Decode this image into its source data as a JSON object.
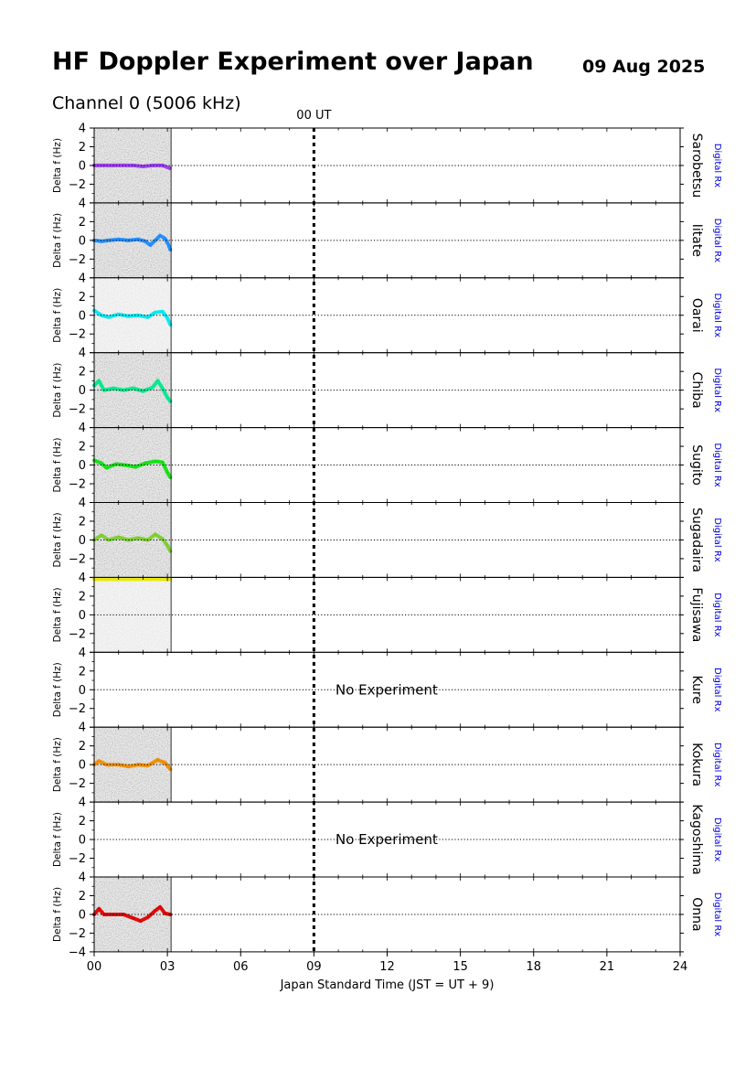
{
  "header": {
    "title": "HF Doppler Experiment over Japan",
    "date": "09 Aug 2025",
    "channel": "Channel 0 (5006 kHz)"
  },
  "chart_data": {
    "type": "line",
    "title": "HF Doppler Experiment over Japan",
    "subtitle": "Channel 0 (5006 kHz)",
    "xlabel": "Japan Standard Time (JST = UT + 9)",
    "ylabel": "Delta f (Hz)",
    "xlim": [
      0,
      24
    ],
    "ylim": [
      -4,
      4
    ],
    "x_ticks": [
      "00",
      "03",
      "06",
      "09",
      "12",
      "15",
      "18",
      "21",
      "24"
    ],
    "y_ticks": [
      "4",
      "2",
      "0",
      "−2",
      "−4"
    ],
    "ut_marker": {
      "x": 9,
      "label": "00 UT"
    },
    "receiver_label": "Digital Rx",
    "no_experiment_text": "No Experiment",
    "data_end_hour": 3.15,
    "panels": [
      {
        "station": "Sarobetsu",
        "color": "#9a3cf0",
        "active": true,
        "background": "dark",
        "series": [
          [
            0.0,
            0.0
          ],
          [
            0.4,
            0.0
          ],
          [
            0.8,
            0.0
          ],
          [
            1.2,
            0.0
          ],
          [
            1.6,
            0.0
          ],
          [
            2.0,
            -0.1
          ],
          [
            2.4,
            0.0
          ],
          [
            2.8,
            0.0
          ],
          [
            3.1,
            -0.3
          ]
        ]
      },
      {
        "station": "Iitate",
        "color": "#1e8cff",
        "active": true,
        "background": "dark",
        "series": [
          [
            0.0,
            0.0
          ],
          [
            0.3,
            -0.1
          ],
          [
            0.6,
            0.0
          ],
          [
            1.0,
            0.1
          ],
          [
            1.4,
            0.0
          ],
          [
            1.8,
            0.1
          ],
          [
            2.1,
            -0.1
          ],
          [
            2.3,
            -0.5
          ],
          [
            2.5,
            0.0
          ],
          [
            2.7,
            0.5
          ],
          [
            2.9,
            0.2
          ],
          [
            3.05,
            -0.5
          ],
          [
            3.12,
            -1.0
          ]
        ]
      },
      {
        "station": "Oarai",
        "color": "#00e8f0",
        "active": true,
        "background": "light",
        "series": [
          [
            0.0,
            0.5
          ],
          [
            0.3,
            0.0
          ],
          [
            0.6,
            -0.2
          ],
          [
            1.0,
            0.1
          ],
          [
            1.4,
            -0.1
          ],
          [
            1.8,
            0.0
          ],
          [
            2.2,
            -0.2
          ],
          [
            2.5,
            0.3
          ],
          [
            2.8,
            0.4
          ],
          [
            3.0,
            -0.3
          ],
          [
            3.12,
            -1.0
          ]
        ]
      },
      {
        "station": "Chiba",
        "color": "#00e88c",
        "active": true,
        "background": "dark",
        "series": [
          [
            0.0,
            0.5
          ],
          [
            0.2,
            1.0
          ],
          [
            0.4,
            0.0
          ],
          [
            0.8,
            0.2
          ],
          [
            1.2,
            0.0
          ],
          [
            1.6,
            0.2
          ],
          [
            2.0,
            -0.1
          ],
          [
            2.4,
            0.3
          ],
          [
            2.6,
            1.0
          ],
          [
            2.8,
            0.2
          ],
          [
            3.0,
            -0.8
          ],
          [
            3.12,
            -1.2
          ]
        ]
      },
      {
        "station": "Sugito",
        "color": "#10e010",
        "active": true,
        "background": "dark",
        "series": [
          [
            0.0,
            0.5
          ],
          [
            0.3,
            0.2
          ],
          [
            0.5,
            -0.3
          ],
          [
            0.9,
            0.1
          ],
          [
            1.3,
            0.0
          ],
          [
            1.7,
            -0.2
          ],
          [
            2.1,
            0.2
          ],
          [
            2.5,
            0.4
          ],
          [
            2.8,
            0.3
          ],
          [
            3.0,
            -0.8
          ],
          [
            3.12,
            -1.3
          ]
        ]
      },
      {
        "station": "Sugadaira",
        "color": "#7ccc30",
        "active": true,
        "background": "dark",
        "series": [
          [
            0.0,
            0.0
          ],
          [
            0.3,
            0.5
          ],
          [
            0.6,
            0.0
          ],
          [
            1.0,
            0.3
          ],
          [
            1.4,
            0.0
          ],
          [
            1.8,
            0.2
          ],
          [
            2.2,
            0.0
          ],
          [
            2.5,
            0.6
          ],
          [
            2.8,
            0.1
          ],
          [
            3.0,
            -0.6
          ],
          [
            3.12,
            -1.2
          ]
        ]
      },
      {
        "station": "Fujisawa",
        "color": "#e8e800",
        "active": true,
        "background": "light",
        "series": [
          [
            0.0,
            3.8
          ],
          [
            0.5,
            3.8
          ],
          [
            1.0,
            3.8
          ],
          [
            1.5,
            3.8
          ],
          [
            2.0,
            3.8
          ],
          [
            2.5,
            3.8
          ],
          [
            3.12,
            3.8
          ]
        ]
      },
      {
        "station": "Kure",
        "color": "#000000",
        "active": false,
        "background": "none",
        "series": []
      },
      {
        "station": "Kokura",
        "color": "#f08c00",
        "active": true,
        "background": "dark",
        "series": [
          [
            0.0,
            0.0
          ],
          [
            0.2,
            0.4
          ],
          [
            0.5,
            0.0
          ],
          [
            1.0,
            0.0
          ],
          [
            1.4,
            -0.2
          ],
          [
            1.8,
            0.0
          ],
          [
            2.2,
            -0.1
          ],
          [
            2.6,
            0.5
          ],
          [
            2.9,
            0.2
          ],
          [
            3.12,
            -0.5
          ]
        ]
      },
      {
        "station": "Kagoshima",
        "color": "#000000",
        "active": false,
        "background": "none",
        "series": []
      },
      {
        "station": "Onna",
        "color": "#e00000",
        "active": true,
        "background": "dark",
        "series": [
          [
            0.0,
            0.0
          ],
          [
            0.2,
            0.6
          ],
          [
            0.4,
            0.0
          ],
          [
            0.8,
            0.0
          ],
          [
            1.2,
            0.0
          ],
          [
            1.6,
            -0.4
          ],
          [
            1.9,
            -0.7
          ],
          [
            2.2,
            -0.3
          ],
          [
            2.5,
            0.4
          ],
          [
            2.7,
            0.8
          ],
          [
            2.9,
            0.1
          ],
          [
            3.12,
            0.0
          ]
        ]
      }
    ]
  }
}
